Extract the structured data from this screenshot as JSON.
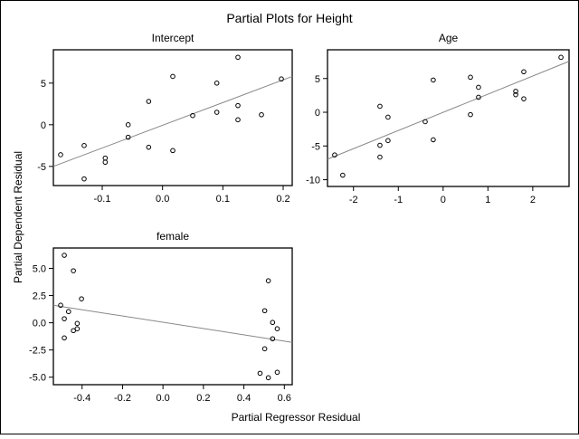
{
  "title": "Partial Plots for Height",
  "ylabel": "Partial Dependent Residual",
  "xlabel": "Partial Regressor Residual",
  "colors": {
    "points": "#000000",
    "fit_line": "#888888",
    "frame": "#000000"
  },
  "chart_data": [
    {
      "type": "scatter",
      "title": "Intercept",
      "xlim": [
        -0.181,
        0.215
      ],
      "ylim": [
        -7.3,
        9.0
      ],
      "xticks": [
        "-0.1",
        "0.0",
        "0.1",
        "0.2"
      ],
      "yticks": [
        "-5",
        "0",
        "5"
      ],
      "grid": false,
      "points": [
        [
          -0.169,
          -3.6
        ],
        [
          -0.13,
          -2.5
        ],
        [
          -0.13,
          -6.5
        ],
        [
          -0.095,
          -4.0
        ],
        [
          -0.095,
          -4.5
        ],
        [
          -0.057,
          0.0
        ],
        [
          -0.057,
          -1.5
        ],
        [
          -0.023,
          2.8
        ],
        [
          -0.023,
          -2.7
        ],
        [
          0.017,
          5.8
        ],
        [
          0.017,
          -3.1
        ],
        [
          0.05,
          1.1
        ],
        [
          0.09,
          5.0
        ],
        [
          0.09,
          1.5
        ],
        [
          0.125,
          8.1
        ],
        [
          0.125,
          2.3
        ],
        [
          0.125,
          0.6
        ],
        [
          0.164,
          1.2
        ],
        [
          0.197,
          5.5
        ]
      ],
      "fit_line": [
        [
          -0.181,
          -5.0
        ],
        [
          0.215,
          5.8
        ]
      ]
    },
    {
      "type": "scatter",
      "title": "Age",
      "xlim": [
        -2.58,
        2.81
      ],
      "ylim": [
        -11.0,
        9.26
      ],
      "xticks": [
        "-2",
        "-1",
        "0",
        "1",
        "2"
      ],
      "yticks": [
        "-10",
        "-5",
        "0",
        "5"
      ],
      "grid": false,
      "points": [
        [
          -2.42,
          -6.33
        ],
        [
          -2.24,
          -9.33
        ],
        [
          -1.41,
          0.88
        ],
        [
          -1.41,
          -4.9
        ],
        [
          -1.41,
          -6.65
        ],
        [
          -1.23,
          -0.73
        ],
        [
          -1.23,
          -4.2
        ],
        [
          -0.4,
          -1.4
        ],
        [
          -0.22,
          4.78
        ],
        [
          -0.22,
          -4.08
        ],
        [
          0.61,
          5.19
        ],
        [
          0.61,
          -0.35
        ],
        [
          0.79,
          3.7
        ],
        [
          0.79,
          2.22
        ],
        [
          1.62,
          3.1
        ],
        [
          1.62,
          2.6
        ],
        [
          1.8,
          6.0
        ],
        [
          1.8,
          1.99
        ],
        [
          2.63,
          8.14
        ]
      ],
      "fit_line": [
        [
          -2.58,
          -6.96
        ],
        [
          2.81,
          7.55
        ]
      ]
    },
    {
      "type": "scatter",
      "title": "female",
      "xlim": [
        -0.542,
        0.639
      ],
      "ylim": [
        -5.69,
        6.87
      ],
      "xticks": [
        "-0.4",
        "-0.2",
        "0.0",
        "0.2",
        "0.4",
        "0.6"
      ],
      "yticks": [
        "-5.0",
        "-2.5",
        "0.0",
        "2.5",
        "5.0"
      ],
      "grid": false,
      "points": [
        [
          -0.488,
          6.2
        ],
        [
          -0.443,
          4.78
        ],
        [
          -0.403,
          2.2
        ],
        [
          -0.506,
          1.61
        ],
        [
          -0.467,
          1.03
        ],
        [
          -0.488,
          0.37
        ],
        [
          -0.424,
          -0.06
        ],
        [
          -0.424,
          -0.55
        ],
        [
          -0.443,
          -0.72
        ],
        [
          -0.488,
          -1.39
        ],
        [
          0.521,
          3.86
        ],
        [
          0.503,
          1.11
        ],
        [
          0.542,
          0.03
        ],
        [
          0.565,
          -0.55
        ],
        [
          0.542,
          -1.47
        ],
        [
          0.503,
          -2.39
        ],
        [
          0.48,
          -4.64
        ],
        [
          0.521,
          -5.05
        ],
        [
          0.565,
          -4.55
        ]
      ],
      "fit_line": [
        [
          -0.542,
          1.61
        ],
        [
          0.639,
          -1.8
        ]
      ]
    }
  ]
}
